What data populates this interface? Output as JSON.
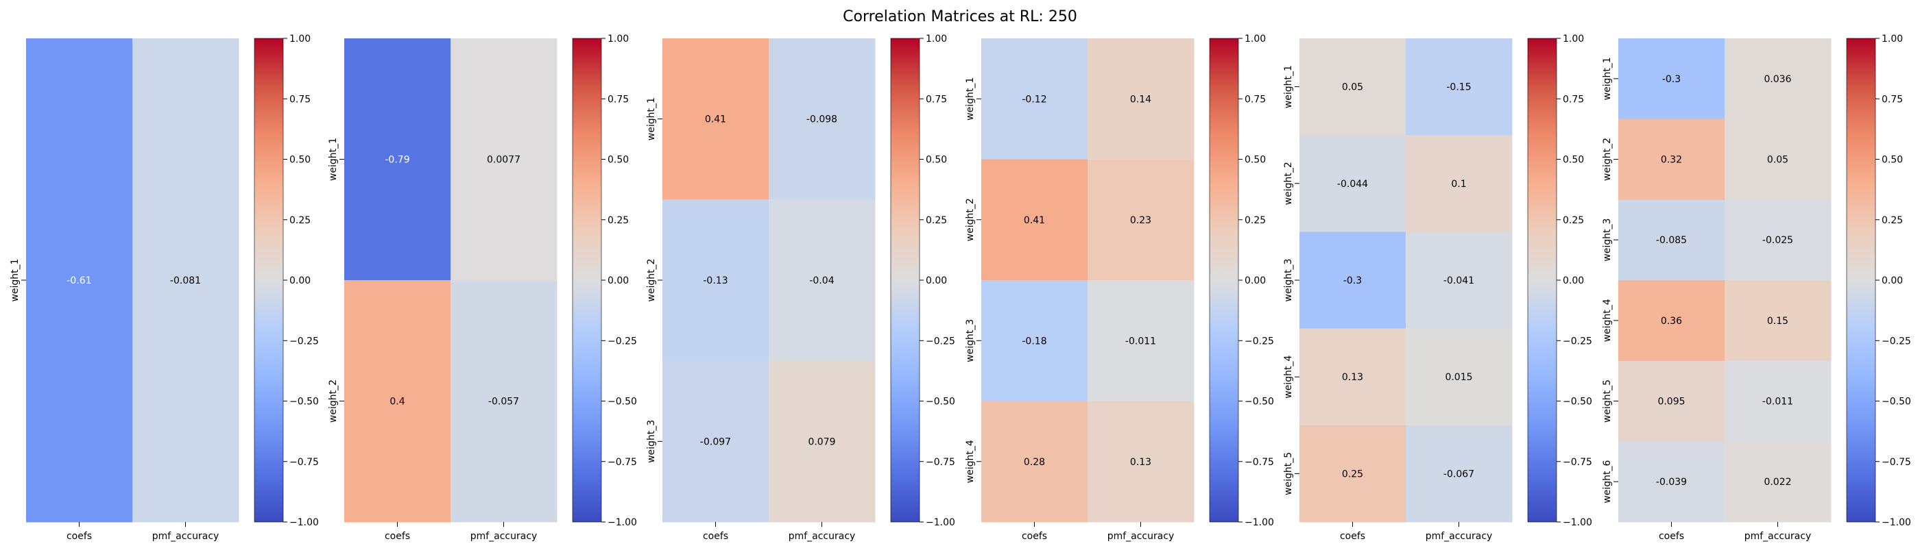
{
  "title": "Correlation Matrices at RL: 250",
  "colorbar_ticks": [
    "1.00",
    "0.75",
    "0.50",
    "0.25",
    "0.00",
    "−0.25",
    "−0.50",
    "−0.75",
    "−1.00"
  ],
  "chart_data": [
    {
      "type": "heatmap",
      "columns": [
        "coefs",
        "pmf_accuracy"
      ],
      "rows": [
        "weight_1"
      ],
      "values": [
        [
          -0.61,
          -0.081
        ]
      ],
      "labels": [
        [
          "-0.61",
          "-0.081"
        ]
      ],
      "vmin": -1,
      "vmax": 1,
      "colormap": "coolwarm"
    },
    {
      "type": "heatmap",
      "columns": [
        "coefs",
        "pmf_accuracy"
      ],
      "rows": [
        "weight_1",
        "weight_2"
      ],
      "values": [
        [
          -0.79,
          0.0077
        ],
        [
          0.4,
          -0.057
        ]
      ],
      "labels": [
        [
          "-0.79",
          "0.0077"
        ],
        [
          "0.4",
          "-0.057"
        ]
      ],
      "vmin": -1,
      "vmax": 1,
      "colormap": "coolwarm"
    },
    {
      "type": "heatmap",
      "columns": [
        "coefs",
        "pmf_accuracy"
      ],
      "rows": [
        "weight_1",
        "weight_2",
        "weight_3"
      ],
      "values": [
        [
          0.41,
          -0.098
        ],
        [
          -0.13,
          -0.04
        ],
        [
          -0.097,
          0.079
        ]
      ],
      "labels": [
        [
          "0.41",
          "-0.098"
        ],
        [
          "-0.13",
          "-0.04"
        ],
        [
          "-0.097",
          "0.079"
        ]
      ],
      "vmin": -1,
      "vmax": 1,
      "colormap": "coolwarm"
    },
    {
      "type": "heatmap",
      "columns": [
        "coefs",
        "pmf_accuracy"
      ],
      "rows": [
        "weight_1",
        "weight_2",
        "weight_3",
        "weight_4"
      ],
      "values": [
        [
          -0.12,
          0.14
        ],
        [
          0.41,
          0.23
        ],
        [
          -0.18,
          -0.011
        ],
        [
          0.28,
          0.13
        ]
      ],
      "labels": [
        [
          "-0.12",
          "0.14"
        ],
        [
          "0.41",
          "0.23"
        ],
        [
          "-0.18",
          "-0.011"
        ],
        [
          "0.28",
          "0.13"
        ]
      ],
      "vmin": -1,
      "vmax": 1,
      "colormap": "coolwarm"
    },
    {
      "type": "heatmap",
      "columns": [
        "coefs",
        "pmf_accuracy"
      ],
      "rows": [
        "weight_1",
        "weight_2",
        "weight_3",
        "weight_4",
        "weight_5"
      ],
      "values": [
        [
          0.05,
          -0.15
        ],
        [
          -0.044,
          0.1
        ],
        [
          -0.3,
          -0.041
        ],
        [
          0.13,
          0.015
        ],
        [
          0.25,
          -0.067
        ]
      ],
      "labels": [
        [
          "0.05",
          "-0.15"
        ],
        [
          "-0.044",
          "0.1"
        ],
        [
          "-0.3",
          "-0.041"
        ],
        [
          "0.13",
          "0.015"
        ],
        [
          "0.25",
          "-0.067"
        ]
      ],
      "vmin": -1,
      "vmax": 1,
      "colormap": "coolwarm"
    },
    {
      "type": "heatmap",
      "columns": [
        "coefs",
        "pmf_accuracy"
      ],
      "rows": [
        "weight_1",
        "weight_2",
        "weight_3",
        "weight_4",
        "weight_5",
        "weight_6"
      ],
      "values": [
        [
          -0.3,
          0.036
        ],
        [
          0.32,
          0.05
        ],
        [
          -0.085,
          -0.025
        ],
        [
          0.36,
          0.15
        ],
        [
          0.095,
          -0.011
        ],
        [
          -0.039,
          0.022
        ]
      ],
      "labels": [
        [
          "-0.3",
          "0.036"
        ],
        [
          "0.32",
          "0.05"
        ],
        [
          "-0.085",
          "-0.025"
        ],
        [
          "0.36",
          "0.15"
        ],
        [
          "0.095",
          "-0.011"
        ],
        [
          "-0.039",
          "0.022"
        ]
      ],
      "vmin": -1,
      "vmax": 1,
      "colormap": "coolwarm"
    }
  ]
}
